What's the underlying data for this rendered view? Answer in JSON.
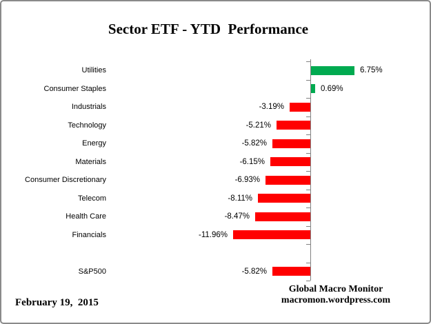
{
  "title": "Sector ETF - YTD  Performance",
  "chart_data": {
    "type": "bar",
    "orientation": "horizontal",
    "title": "Sector ETF - YTD  Performance",
    "categories": [
      "Utilities",
      "Consumer Staples",
      "Industrials",
      "Technology",
      "Energy",
      "Materials",
      "Consumer Discretionary",
      "Telecom",
      "Health Care",
      "Financials",
      "S&P500"
    ],
    "values": [
      6.75,
      0.69,
      -3.19,
      -5.21,
      -5.82,
      -6.15,
      -6.93,
      -8.11,
      -8.47,
      -11.96,
      -5.82
    ],
    "value_labels": [
      "6.75%",
      "0.69%",
      "-3.19%",
      "-5.21%",
      "-5.82%",
      "-6.15%",
      "-6.93%",
      "-8.11%",
      "-8.47%",
      "-11.96%",
      "-5.82%"
    ],
    "units": "percent",
    "gap_before_category": "S&P500",
    "positive_color": "#00AA50",
    "negative_color": "#FF0000",
    "axis_color": "#808080",
    "legend": "none",
    "grid": "off",
    "value_axis_labels": "hidden"
  },
  "footer": {
    "date": "February 19,  2015",
    "brand_line1": "Global Macro Monitor",
    "brand_line2": "macromon.wordpress.com"
  }
}
